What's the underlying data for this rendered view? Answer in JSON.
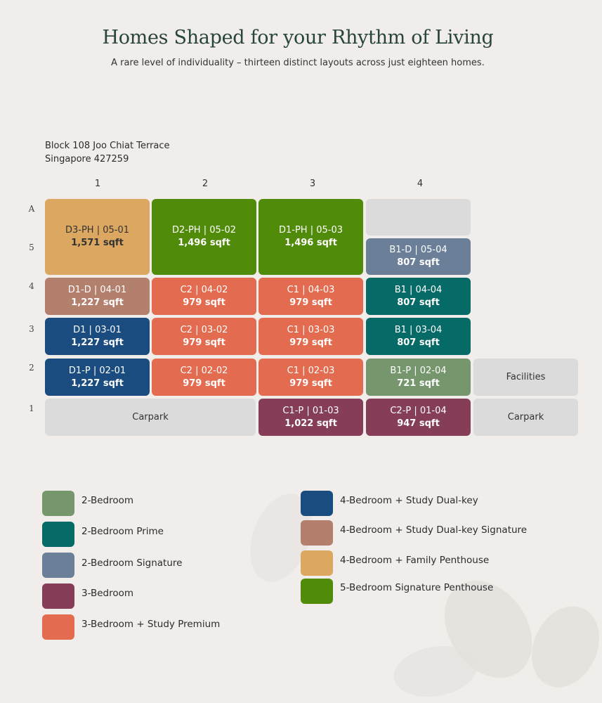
{
  "header": {
    "title": "Homes Shaped for your Rhythm of Living",
    "subtitle": "A rare level of individuality – thirteen distinct layouts across just eighteen homes."
  },
  "address": {
    "line1": "Block 108 Joo Chiat Terrace",
    "line2": "Singapore 427259"
  },
  "columns": [
    "1",
    "2",
    "3",
    "4"
  ],
  "rows": [
    "A",
    "5",
    "4",
    "3",
    "2",
    "1"
  ],
  "colors": {
    "two_bed": "#76976d",
    "two_bed_prime": "#066b66",
    "two_bed_signature": "#6b7f98",
    "three_bed": "#863e58",
    "three_bed_study_premium": "#e36b4f",
    "four_bed_dual_key": "#1b4c80",
    "four_bed_dual_key_signature": "#b4806e",
    "four_bed_family_penthouse": "#dca760",
    "five_bed_signature_penthouse": "#518b0a",
    "empty": "#dbdbdb"
  },
  "units": {
    "u0501": {
      "label": "D3-PH | 05-01",
      "size": "1,571 sqft"
    },
    "u0502": {
      "label": "D2-PH | 05-02",
      "size": "1,496 sqft"
    },
    "u0503": {
      "label": "D1-PH | 05-03",
      "size": "1,496 sqft"
    },
    "u0504": {
      "label": "B1-D | 05-04",
      "size": "807 sqft"
    },
    "u0401": {
      "label": "D1-D | 04-01",
      "size": "1,227 sqft"
    },
    "u0402": {
      "label": "C2 | 04-02",
      "size": "979 sqft"
    },
    "u0403": {
      "label": "C1 | 04-03",
      "size": "979 sqft"
    },
    "u0404": {
      "label": "B1 | 04-04",
      "size": "807 sqft"
    },
    "u0301": {
      "label": "D1 | 03-01",
      "size": "1,227 sqft"
    },
    "u0302": {
      "label": "C2 | 03-02",
      "size": "979 sqft"
    },
    "u0303": {
      "label": "C1 | 03-03",
      "size": "979 sqft"
    },
    "u0304": {
      "label": "B1 | 03-04",
      "size": "807 sqft"
    },
    "u0201": {
      "label": "D1-P | 02-01",
      "size": "1,227 sqft"
    },
    "u0202": {
      "label": "C2 | 02-02",
      "size": "979 sqft"
    },
    "u0203": {
      "label": "C1 | 02-03",
      "size": "979 sqft"
    },
    "u0204": {
      "label": "B1-P | 02-04",
      "size": "721 sqft"
    },
    "u0103": {
      "label": "C1-P | 01-03",
      "size": "1,022 sqft"
    },
    "u0104": {
      "label": "C2-P | 01-04",
      "size": "947 sqft"
    }
  },
  "facilities": {
    "facilities": "Facilities",
    "carpark_left": "Carpark",
    "carpark_right": "Carpark"
  },
  "legend": [
    "2-Bedroom",
    "2-Bedroom Prime",
    "2-Bedroom Signature",
    "3-Bedroom",
    "3-Bedroom + Study Premium",
    "4-Bedroom + Study Dual-key",
    "4-Bedroom + Study Dual-key Signature",
    "4-Bedroom + Family Penthouse",
    "5-Bedroom Signature Penthouse"
  ]
}
